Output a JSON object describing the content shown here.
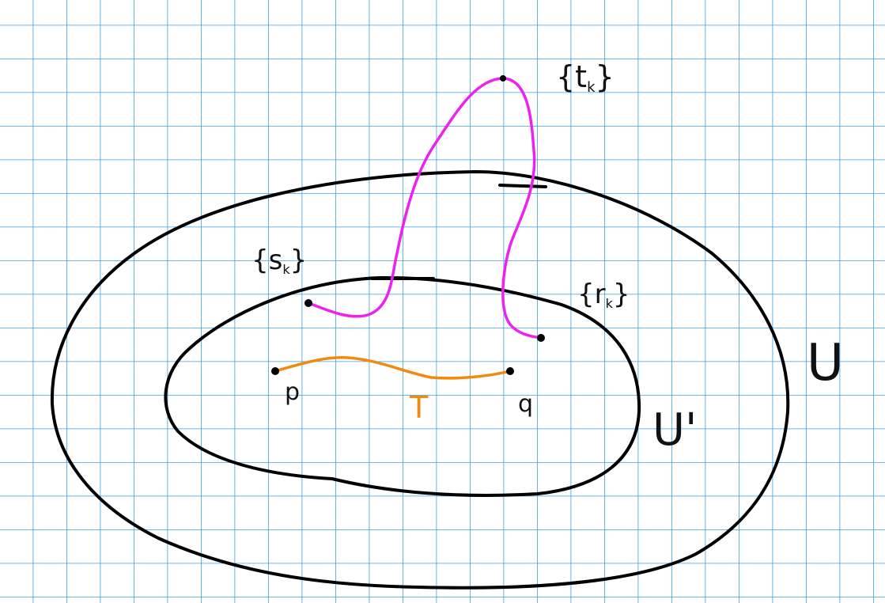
{
  "colors": {
    "grid": "#3aa0e6",
    "ink": "#000000",
    "magenta": "#ee22ee",
    "orange": "#f08a10"
  },
  "labels": {
    "t_seq": "{t",
    "t_sub": "k",
    "t_close": "}",
    "s_seq": "{s",
    "s_sub": "k",
    "s_close": "}",
    "r_seq": "{r",
    "r_sub": "k",
    "r_close": "}",
    "p": "p",
    "q": "q",
    "T": "T",
    "U": "U",
    "U_prime": "U'"
  }
}
